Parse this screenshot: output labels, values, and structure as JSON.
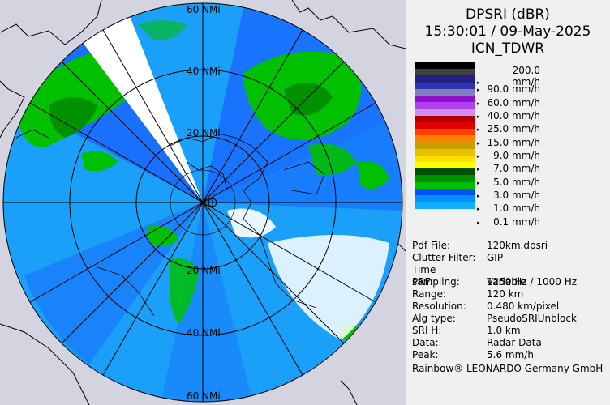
{
  "header": {
    "product": "DPSRI (dBR)",
    "datetime": "15:30:01 / 09-May-2025",
    "radar": "ICN_TDWR"
  },
  "rings": [
    "20 NMi",
    "40 NMi",
    "60 NMi"
  ],
  "legend": {
    "top_label": "200.0 mm/h",
    "rows": [
      {
        "label": "90.0 mm/h"
      },
      {
        "label": "60.0 mm/h"
      },
      {
        "label": "40.0 mm/h"
      },
      {
        "label": "25.0 mm/h"
      },
      {
        "label": "15.0 mm/h"
      },
      {
        "label": "9.0 mm/h"
      },
      {
        "label": "7.0 mm/h"
      },
      {
        "label": "5.0 mm/h"
      },
      {
        "label": "3.0 mm/h"
      },
      {
        "label": "1.0 mm/h"
      },
      {
        "label": "0.1 mm/h"
      }
    ],
    "colors": [
      "#000000",
      "#404040",
      "#202080",
      "#3030b0",
      "#8080c0",
      "#9010d0",
      "#b040f0",
      "#d090f0",
      "#b00000",
      "#e00000",
      "#ff4000",
      "#ff8000",
      "#c8a000",
      "#e8c000",
      "#ffe000",
      "#ffff00",
      "#005000",
      "#009000",
      "#00c000",
      "#0050ff",
      "#0090ff",
      "#10b0ff"
    ]
  },
  "info": [
    {
      "key": "Pdf File:",
      "value": "120km.dpsri"
    },
    {
      "key": "Clutter Filter:",
      "value": "GIP"
    },
    {
      "key": "Time sampling:",
      "value": "Variable"
    },
    {
      "key": "PRF:",
      "value": "1250 Hz / 1000 Hz"
    },
    {
      "key": "Range:",
      "value": "120 km"
    },
    {
      "key": "Resolution:",
      "value": "0.480 km/pixel"
    },
    {
      "key": "Alg type:",
      "value": "PseudoSRIUnblock"
    },
    {
      "key": "SRI H:",
      "value": "1.0 km"
    },
    {
      "key": "Data:",
      "value": "Radar Data"
    },
    {
      "key": "Peak:",
      "value": "5.6 mm/h"
    }
  ],
  "footer": "Rainbow® LEONARDO Germany GmbH",
  "colors": {
    "background_outside": "#d4d4e0",
    "radar_base": "#1aa0f8",
    "radar_mid": "#1860ff",
    "radar_green": "#00c000",
    "blocked_sector": "#ffffff"
  }
}
